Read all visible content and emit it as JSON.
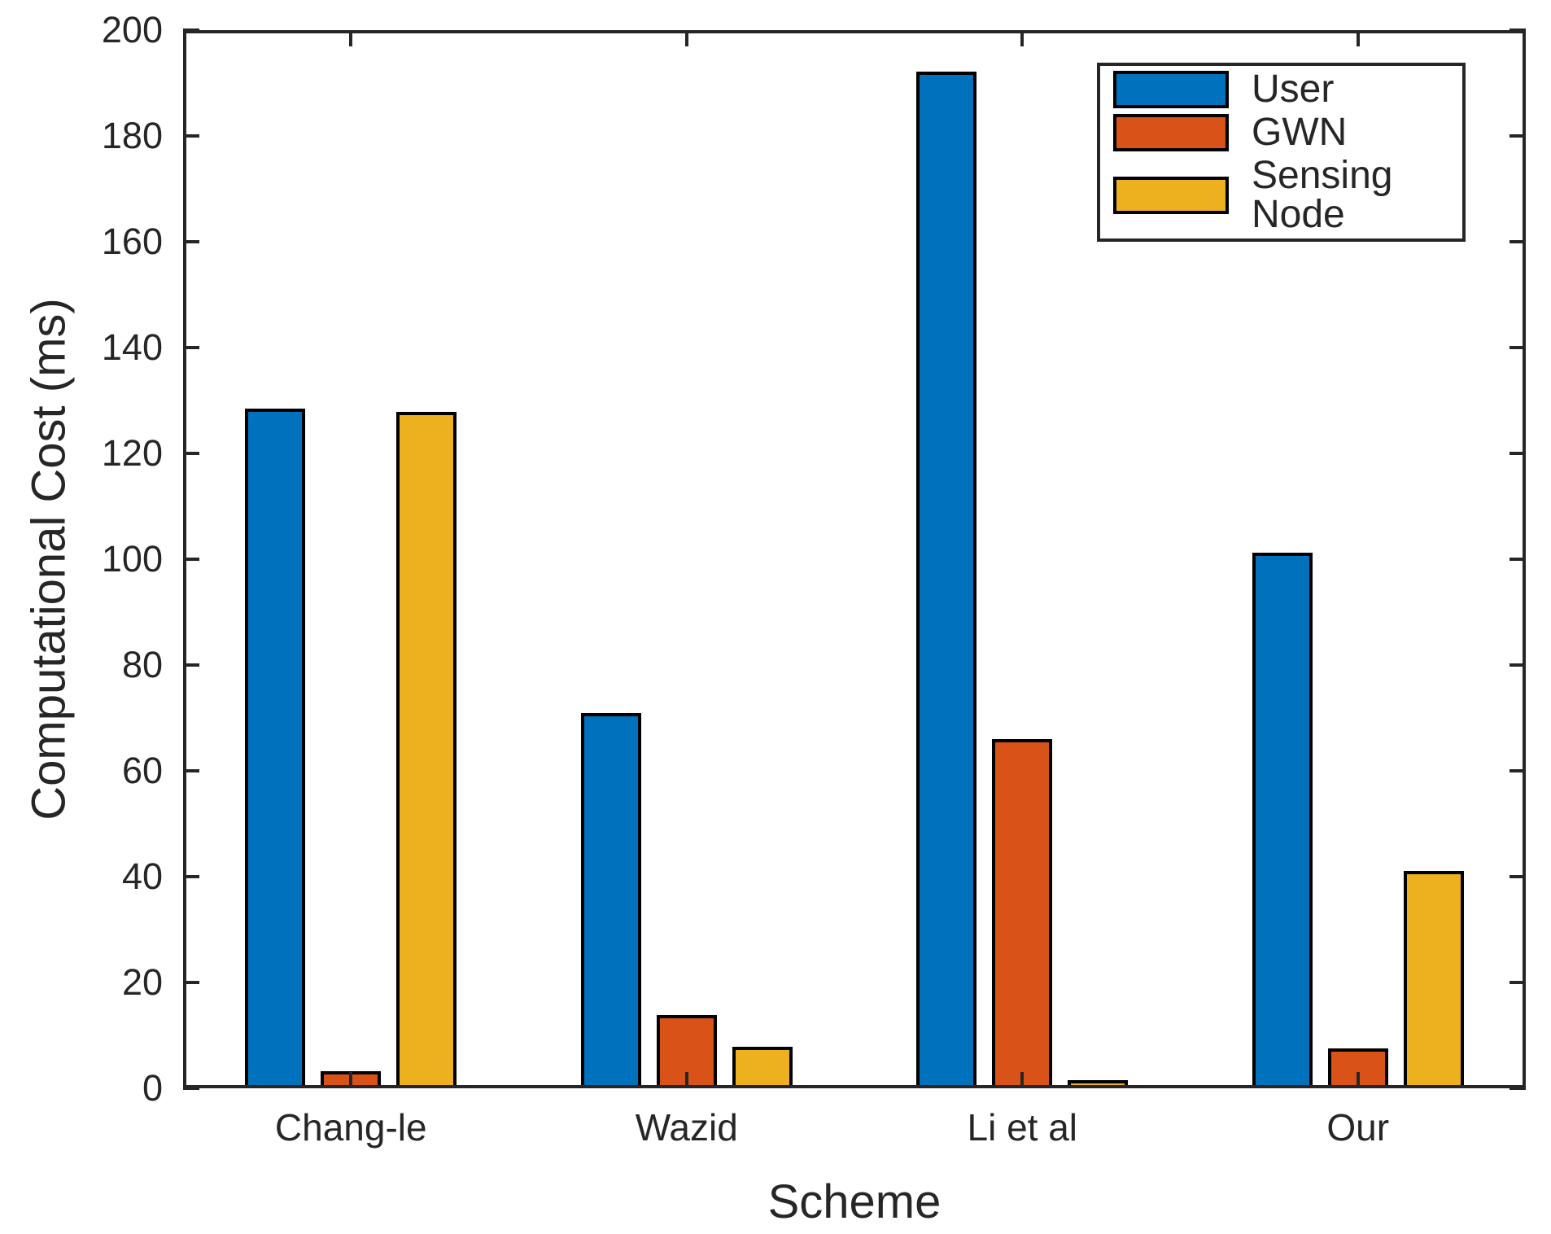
{
  "figure": {
    "background": "#ffffff",
    "axes_color": "#262626",
    "bar_edge_color": "#000000"
  },
  "chart_data": {
    "type": "bar",
    "title": "",
    "xlabel": "Scheme",
    "ylabel": "Computational Cost (ms)",
    "ylim": [
      0,
      200
    ],
    "ytick_step": 20,
    "grid": false,
    "legend_position": "top-right",
    "categories": [
      "Chang-le",
      "Wazid",
      "Li et al",
      "Our"
    ],
    "series": [
      {
        "name": "User",
        "color": "#0072BD",
        "values": [
          128.4,
          70.9,
          192.2,
          101.3
        ]
      },
      {
        "name": "GWN",
        "color": "#D95319",
        "values": [
          3.2,
          13.8,
          66.0,
          7.6
        ]
      },
      {
        "name": "Sensing Node",
        "color": "#EDB120",
        "values": [
          127.8,
          7.8,
          1.5,
          41.0
        ]
      }
    ]
  }
}
